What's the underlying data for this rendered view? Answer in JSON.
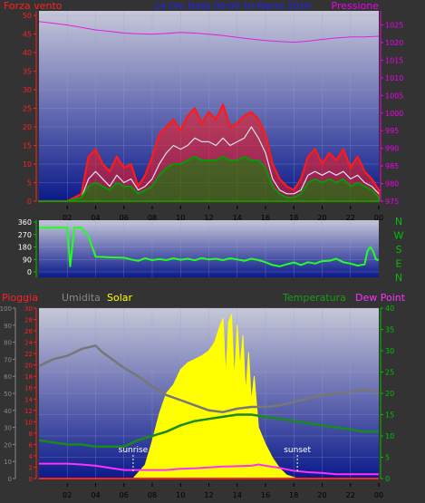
{
  "colors": {
    "background": "#333333",
    "wind_speed": "#ff1a1a",
    "wind_gust_avg": "#e0e0f0",
    "wind_avg": "#00a000",
    "pressure": "#e020e0",
    "direction": "#22ff22",
    "humidity": "#777777",
    "solar": "#ffff00",
    "temperature": "#1a8a1a",
    "dew_point": "#ff30ff",
    "rain": "#ff2020",
    "axis_red": "#ff2020",
    "axis_magenta": "#ee00ee",
    "axis_green": "#00c000",
    "axis_grey": "#888888",
    "x_axis_text": "#000000",
    "title_blue": "#2020ff",
    "annot": "#ffffff"
  },
  "chart_data": [
    {
      "type": "line",
      "title": "24 Ore Dalle 00:00 10 Marzo 2016",
      "left_label": "Forza vento",
      "right_label": "Pressione",
      "x_ticks": [
        "02",
        "04",
        "06",
        "08",
        "10",
        "12",
        "14",
        "16",
        "18",
        "20",
        "22",
        "00"
      ],
      "y_left_ticks": [
        0,
        5,
        10,
        15,
        20,
        25,
        30,
        35,
        40,
        45,
        50
      ],
      "y_left_lim": [
        0,
        50
      ],
      "y_right_ticks": [
        975,
        980,
        985,
        990,
        995,
        1000,
        1005,
        1010,
        1015,
        1020,
        1025
      ],
      "y_right_lim": [
        975,
        1029
      ],
      "series": [
        {
          "name": "Forza vento",
          "x": [
            0,
            1,
            2,
            3,
            3.5,
            4,
            4.5,
            5,
            5.5,
            6,
            6.5,
            7,
            7.5,
            8,
            8.5,
            9,
            9.5,
            10,
            10.5,
            11,
            11.5,
            12,
            12.5,
            13,
            13.5,
            14,
            14.5,
            15,
            15.5,
            16,
            16.5,
            17,
            17.5,
            18,
            18.5,
            19,
            19.5,
            20,
            20.5,
            21,
            21.5,
            22,
            22.5,
            23,
            23.5,
            24
          ],
          "values": [
            0,
            0,
            0,
            2,
            12,
            14,
            10,
            8,
            12,
            9,
            10,
            4,
            7,
            12,
            18,
            20,
            22,
            19,
            23,
            25,
            21,
            24,
            22,
            26,
            20,
            21,
            23,
            24,
            22,
            18,
            10,
            6,
            4,
            3,
            6,
            12,
            14,
            10,
            13,
            11,
            14,
            9,
            12,
            8,
            6,
            3
          ]
        },
        {
          "name": "Raffica media",
          "x": [
            0,
            1,
            2,
            3,
            3.5,
            4,
            4.5,
            5,
            5.5,
            6,
            6.5,
            7,
            7.5,
            8,
            8.5,
            9,
            9.5,
            10,
            10.5,
            11,
            11.5,
            12,
            12.5,
            13,
            13.5,
            14,
            14.5,
            15,
            15.5,
            16,
            16.5,
            17,
            17.5,
            18,
            18.5,
            19,
            19.5,
            20,
            20.5,
            21,
            21.5,
            22,
            22.5,
            23,
            23.5,
            24
          ],
          "values": [
            0,
            0,
            0,
            1,
            6,
            8,
            6,
            4,
            7,
            5,
            6,
            3,
            4,
            6,
            10,
            13,
            15,
            14,
            15,
            17,
            16,
            16,
            15,
            17,
            15,
            16,
            17,
            20,
            17,
            13,
            6,
            3,
            2,
            2,
            3,
            7,
            8,
            7,
            8,
            7,
            8,
            6,
            7,
            5,
            4,
            2
          ]
        },
        {
          "name": "Vento medio",
          "x": [
            0,
            1,
            2,
            3,
            3.5,
            4,
            4.5,
            5,
            5.5,
            6,
            6.5,
            7,
            7.5,
            8,
            8.5,
            9,
            9.5,
            10,
            10.5,
            11,
            11.5,
            12,
            12.5,
            13,
            13.5,
            14,
            14.5,
            15,
            15.5,
            16,
            16.5,
            17,
            17.5,
            18,
            18.5,
            19,
            19.5,
            20,
            20.5,
            21,
            21.5,
            22,
            22.5,
            23,
            23.5,
            24
          ],
          "values": [
            0,
            0,
            0,
            1,
            4,
            5,
            4,
            3,
            5,
            4,
            4,
            2,
            3,
            4,
            7,
            9,
            10,
            10,
            11,
            12,
            11,
            11,
            11,
            12,
            11,
            11,
            12,
            11,
            11,
            9,
            4,
            2,
            1,
            1,
            2,
            5,
            6,
            5,
            6,
            5,
            6,
            4,
            5,
            4,
            3,
            1
          ]
        },
        {
          "name": "Pressione",
          "axis": "right",
          "x": [
            0,
            1,
            2,
            3,
            4,
            5,
            6,
            7,
            8,
            9,
            10,
            11,
            12,
            13,
            14,
            15,
            16,
            17,
            18,
            19,
            20,
            21,
            22,
            23,
            24
          ],
          "values": [
            1026,
            1025.5,
            1025,
            1024.3,
            1023.6,
            1023.2,
            1022.7,
            1022.5,
            1022.4,
            1022.6,
            1022.9,
            1022.7,
            1022.4,
            1022,
            1021.5,
            1021,
            1020.6,
            1020.3,
            1020.1,
            1020.4,
            1020.9,
            1021.3,
            1021.6,
            1021.6,
            1021.8
          ]
        }
      ]
    },
    {
      "type": "line",
      "right_label": "N W S E N",
      "compass_labels": [
        "N",
        "W",
        "S",
        "E",
        "N"
      ],
      "y_ticks": [
        0,
        90,
        180,
        270,
        360
      ],
      "y_lim": [
        0,
        360
      ],
      "series": [
        {
          "name": "Direzione vento",
          "x": [
            0,
            0.5,
            1,
            1.5,
            2,
            2.2,
            2.5,
            3,
            3.5,
            4,
            4.5,
            5,
            5.5,
            6,
            6.5,
            7,
            7.5,
            8,
            8.5,
            9,
            9.5,
            10,
            10.5,
            11,
            11.5,
            12,
            12.5,
            13,
            13.5,
            14,
            14.5,
            15,
            15.5,
            16,
            16.5,
            17,
            17.5,
            18,
            18.5,
            19,
            19.5,
            20,
            20.5,
            21,
            21.5,
            22,
            22.5,
            23,
            23.2,
            23.4,
            23.6,
            23.8,
            24
          ],
          "values": [
            320,
            318,
            320,
            319,
            320,
            40,
            320,
            318,
            255,
            110,
            108,
            105,
            104,
            102,
            90,
            80,
            98,
            85,
            92,
            85,
            98,
            88,
            95,
            84,
            100,
            90,
            95,
            85,
            98,
            90,
            80,
            95,
            85,
            70,
            50,
            40,
            55,
            68,
            50,
            70,
            60,
            78,
            80,
            95,
            70,
            60,
            45,
            55,
            150,
            180,
            150,
            90,
            85
          ]
        }
      ]
    },
    {
      "type": "line",
      "left_label_1": "Pioggia",
      "left_label_2": "Umidita",
      "left_label_3": "Solar",
      "right_label_1": "Temperatura",
      "right_label_2": "Dew Point",
      "annotations": [
        {
          "text": "sunrise",
          "x": 6.65
        },
        {
          "text": "sunset",
          "x": 18.25
        }
      ],
      "x_ticks": [
        "02",
        "04",
        "06",
        "08",
        "10",
        "12",
        "14",
        "16",
        "18",
        "20",
        "22",
        "00"
      ],
      "y_hum_ticks": [
        0,
        10,
        20,
        30,
        40,
        50,
        60,
        70,
        80,
        90,
        100
      ],
      "y_hum_lim": [
        0,
        100
      ],
      "y_rain_ticks": [
        0,
        2,
        4,
        6,
        8,
        10,
        12,
        14,
        16,
        18,
        20,
        22,
        24,
        26,
        28,
        30
      ],
      "y_rain_lim": [
        0,
        30
      ],
      "y_temp_ticks": [
        0,
        5,
        10,
        15,
        20,
        25,
        30,
        35,
        40
      ],
      "y_temp_lim": [
        0,
        40
      ],
      "series": [
        {
          "name": "Umidita",
          "x": [
            0,
            1,
            2,
            3,
            3.5,
            4,
            4.5,
            5,
            5.5,
            6,
            7,
            8,
            9,
            10,
            11,
            12,
            13,
            14,
            15,
            16,
            17,
            18,
            19,
            20,
            21,
            22,
            23,
            24
          ],
          "values": [
            66,
            70,
            72,
            76,
            77,
            78,
            74,
            71,
            68,
            65,
            60,
            54,
            49,
            46,
            43,
            40,
            39,
            41,
            42,
            42,
            43,
            45,
            47,
            49,
            50,
            51,
            52,
            51
          ]
        },
        {
          "name": "Solar",
          "x": [
            6.65,
            7.5,
            8,
            8.5,
            9,
            9.5,
            10,
            10.5,
            11,
            11.5,
            12,
            12.4,
            12.8,
            13,
            13.2,
            13.4,
            13.6,
            13.8,
            14,
            14.2,
            14.4,
            14.6,
            14.8,
            15,
            15.2,
            15.5,
            16,
            16.5,
            17,
            17.5,
            18.25
          ],
          "values": [
            0,
            8,
            22,
            38,
            50,
            55,
            64,
            68,
            70,
            72,
            75,
            80,
            90,
            94,
            60,
            92,
            96,
            58,
            90,
            65,
            84,
            50,
            74,
            45,
            60,
            30,
            20,
            12,
            6,
            2,
            0
          ]
        },
        {
          "name": "Temperatura",
          "x": [
            0,
            1,
            2,
            3,
            4,
            5,
            6,
            7,
            8,
            9,
            10,
            11,
            12,
            13,
            14,
            15,
            16,
            17,
            18,
            19,
            20,
            21,
            22,
            23,
            24
          ],
          "values": [
            9,
            8.5,
            8,
            8,
            7.5,
            7.5,
            7.5,
            9,
            10,
            11,
            12.5,
            13.5,
            14,
            14.5,
            15,
            15,
            14.5,
            14,
            13.5,
            13,
            12.5,
            12,
            11.5,
            11,
            11
          ]
        },
        {
          "name": "Dew Point",
          "x": [
            0,
            1,
            2,
            3,
            4,
            5,
            6,
            7,
            8,
            9,
            10,
            11,
            12,
            13,
            14,
            15,
            15.5,
            16,
            17,
            18,
            19,
            20,
            21,
            22,
            23,
            24
          ],
          "values": [
            3.5,
            3.5,
            3.5,
            3.3,
            3,
            2.5,
            2,
            2,
            2,
            2,
            2.3,
            2.4,
            2.6,
            2.8,
            2.9,
            3,
            3.3,
            3,
            2.5,
            1.8,
            1.5,
            1.3,
            1,
            1,
            1,
            1
          ]
        },
        {
          "name": "Pioggia",
          "x": [
            0,
            24
          ],
          "values": [
            0,
            0
          ]
        }
      ]
    }
  ]
}
